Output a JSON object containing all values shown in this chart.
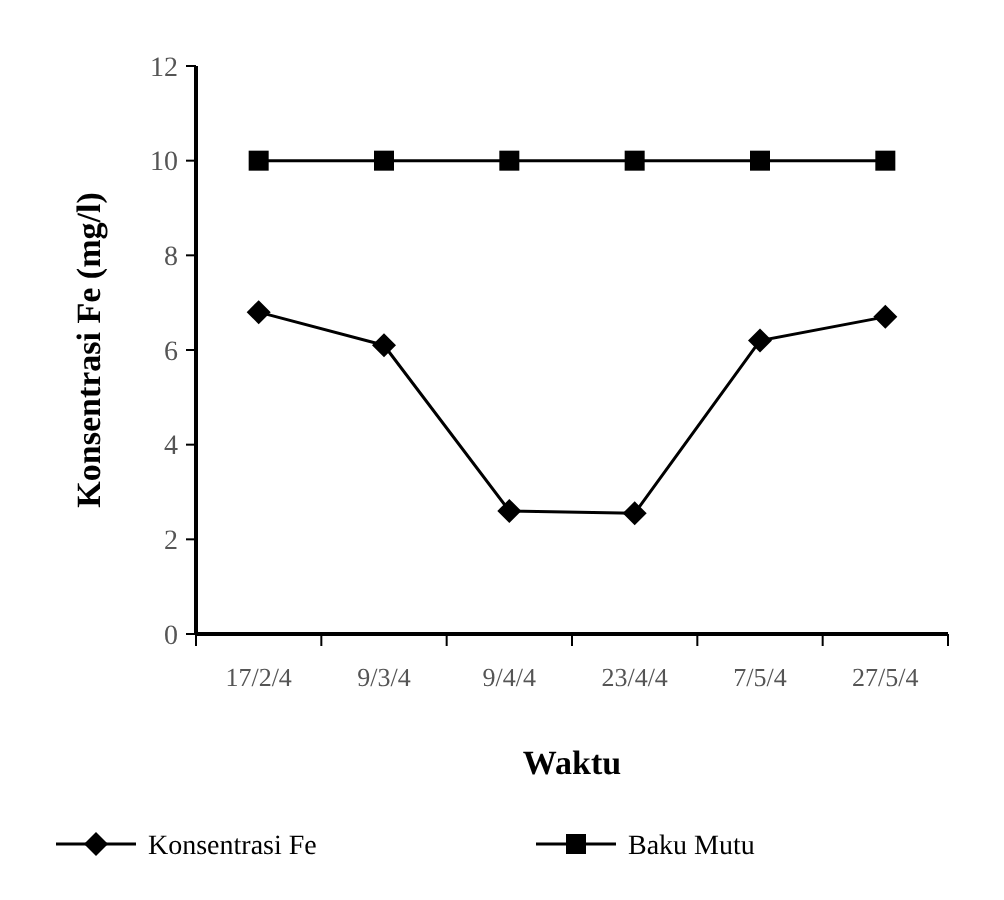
{
  "chart_data": {
    "type": "line",
    "xlabel": "Waktu",
    "ylabel": "Konsentrasi Fe (mg/l)",
    "categories": [
      "17/2/4",
      "9/3/4",
      "9/4/4",
      "23/4/4",
      "7/5/4",
      "27/5/4"
    ],
    "series": [
      {
        "name": "Konsentrasi Fe",
        "color": "#000000",
        "marker": "diamond",
        "values": [
          6.8,
          6.1,
          2.6,
          2.55,
          6.2,
          6.7
        ]
      },
      {
        "name": "Baku Mutu",
        "color": "#000000",
        "marker": "square",
        "values": [
          10,
          10,
          10,
          10,
          10,
          10
        ]
      }
    ],
    "ylim": [
      0,
      12
    ],
    "yticks": [
      0,
      2,
      4,
      6,
      8,
      10,
      12
    ],
    "grid": false,
    "legend": "bottom"
  }
}
